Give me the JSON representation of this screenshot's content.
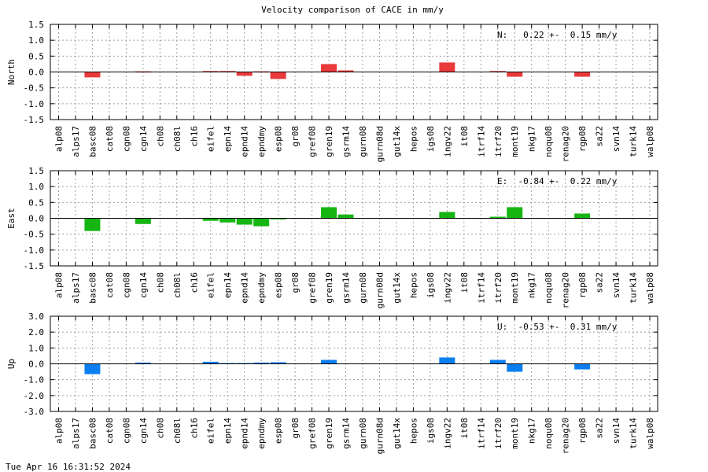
{
  "title": "Velocity comparison of CACE in mm/y",
  "timestamp": "Tue Apr 16 16:31:52 2024",
  "chart_data": [
    {
      "type": "bar",
      "ylabel": "North",
      "stat": "N:   0.22 +-  0.15 mm/y",
      "color": "#e8393b",
      "ylim": [
        -1.5,
        1.5
      ],
      "yticks": [
        "1.5",
        "1.0",
        "0.5",
        "0.0",
        "-0.5",
        "-1.0",
        "-1.5"
      ],
      "ytick_values": [
        1.5,
        1.0,
        0.5,
        0.0,
        -0.5,
        -1.0,
        -1.5
      ],
      "grid": true,
      "categories": [
        "alp08",
        "alps17",
        "basc08",
        "cat08",
        "cgn08",
        "cgn14",
        "ch08",
        "ch08l",
        "ch16",
        "eifel",
        "epn14",
        "epnd14",
        "epndmy",
        "esp08",
        "gr08",
        "gref08",
        "gren19",
        "gsrm14",
        "gurn08",
        "gurn08d",
        "gut14x",
        "hepos",
        "igs08",
        "ingv22",
        "it08",
        "itrf14",
        "itrf20",
        "mont19",
        "nkg17",
        "noqu08",
        "renag20",
        "rgp08",
        "sa22",
        "svn14",
        "turk14",
        "walp08"
      ],
      "values": [
        0,
        0,
        -0.17,
        0,
        0,
        0.02,
        0,
        0,
        0,
        0.03,
        0.03,
        -0.12,
        0.02,
        -0.22,
        0,
        0,
        0.25,
        0.05,
        0,
        0,
        0,
        0,
        0,
        0.3,
        0,
        0,
        0.03,
        -0.15,
        0,
        0,
        0,
        -0.15,
        0,
        0,
        0,
        0
      ]
    },
    {
      "type": "bar",
      "ylabel": "East",
      "stat": "E:  -0.84 +-  0.22 mm/y",
      "color": "#15b612",
      "ylim": [
        -1.5,
        1.5
      ],
      "yticks": [
        "1.5",
        "1.0",
        "0.5",
        "0.0",
        "-0.5",
        "-1.0",
        "-1.5"
      ],
      "ytick_values": [
        1.5,
        1.0,
        0.5,
        0.0,
        -0.5,
        -1.0,
        -1.5
      ],
      "grid": true,
      "categories": [
        "alp08",
        "alps17",
        "basc08",
        "cat08",
        "cgn08",
        "cgn14",
        "ch08",
        "ch08l",
        "ch16",
        "eifel",
        "epn14",
        "epnd14",
        "epndmy",
        "esp08",
        "gr08",
        "gref08",
        "gren19",
        "gsrm14",
        "gurn08",
        "gurn08d",
        "gut14x",
        "hepos",
        "igs08",
        "ingv22",
        "it08",
        "itrf14",
        "itrf20",
        "mont19",
        "nkg17",
        "noqu08",
        "renag20",
        "rgp08",
        "sa22",
        "svn14",
        "turk14",
        "walp08"
      ],
      "values": [
        0,
        0,
        -0.4,
        0,
        0,
        -0.18,
        0,
        0,
        0,
        -0.08,
        -0.13,
        -0.2,
        -0.25,
        -0.03,
        0,
        0,
        0.35,
        0.12,
        0,
        0,
        0,
        0,
        0,
        0.2,
        0,
        0,
        0.05,
        0.35,
        0,
        0,
        0,
        0.15,
        0,
        0,
        0,
        0
      ]
    },
    {
      "type": "bar",
      "ylabel": "Up",
      "stat": "U:  -0.53 +-  0.31 mm/y",
      "color": "#0b7fef",
      "ylim": [
        -3.0,
        3.0
      ],
      "yticks": [
        "3.0",
        "2.0",
        "1.0",
        "0.0",
        "-1.0",
        "-2.0",
        "-3.0"
      ],
      "ytick_values": [
        3.0,
        2.0,
        1.0,
        0.0,
        -1.0,
        -2.0,
        -3.0
      ],
      "grid": true,
      "categories": [
        "alp08",
        "alps17",
        "basc08",
        "cat08",
        "cgn08",
        "cgn14",
        "ch08",
        "ch08l",
        "ch16",
        "eifel",
        "epn14",
        "epnd14",
        "epndmy",
        "esp08",
        "gr08",
        "gref08",
        "gren19",
        "gsrm14",
        "gurn08",
        "gurn08d",
        "gut14x",
        "hepos",
        "igs08",
        "ingv22",
        "it08",
        "itrf14",
        "itrf20",
        "mont19",
        "nkg17",
        "noqu08",
        "renag20",
        "rgp08",
        "sa22",
        "svn14",
        "turk14",
        "walp08"
      ],
      "values": [
        0,
        0,
        -0.65,
        0,
        0,
        0.08,
        0,
        0,
        0,
        0.13,
        0.05,
        0.05,
        0.08,
        0.1,
        0,
        0,
        0.25,
        0,
        0,
        0,
        0,
        0,
        0,
        0.4,
        0,
        0,
        0.25,
        -0.5,
        0,
        0,
        0,
        -0.35,
        0,
        0,
        0,
        0
      ]
    }
  ]
}
